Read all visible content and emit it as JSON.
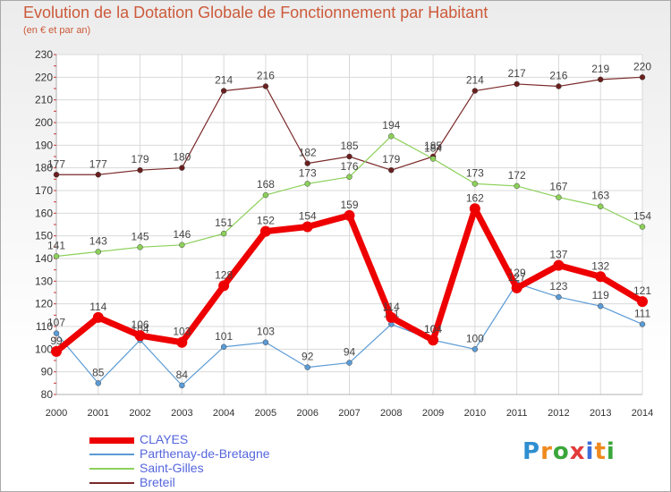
{
  "chart_data": {
    "type": "line",
    "title": "Evolution de la Dotation Globale de Fonctionnement par Habitant",
    "subtitle": "(en € et par an)",
    "x": [
      "2000",
      "2001",
      "2002",
      "2003",
      "2004",
      "2005",
      "2006",
      "2007",
      "2008",
      "2009",
      "2010",
      "2011",
      "2012",
      "2013",
      "2014"
    ],
    "ylim": [
      80,
      230
    ],
    "yticks": [
      80,
      90,
      100,
      110,
      120,
      130,
      140,
      150,
      160,
      170,
      180,
      190,
      200,
      210,
      220,
      230
    ],
    "grid": true,
    "legend_position": "bottom-left",
    "series": [
      {
        "name": "CLAYES",
        "color": "#ee0000",
        "values": [
          99,
          114,
          106,
          103,
          128,
          152,
          154,
          159,
          114,
          104,
          162,
          127,
          137,
          132,
          121
        ],
        "labels": [
          "99",
          "114",
          "106",
          "103",
          "128",
          "152",
          "154",
          "159",
          "114",
          "104",
          "162",
          "127",
          "137",
          "132",
          "121"
        ]
      },
      {
        "name": "Parthenay-de-Bretagne",
        "color": "#5b9bd5",
        "values": [
          107,
          85,
          104,
          84,
          101,
          103,
          92,
          94,
          111,
          104,
          100,
          129,
          123,
          119,
          111
        ],
        "labels": [
          "107",
          "85",
          "104",
          "84",
          "101",
          "103",
          "92",
          "94",
          "111",
          "104",
          "100",
          "129",
          "123",
          "119",
          "111"
        ]
      },
      {
        "name": "Saint-Gilles",
        "color": "#8cd05a",
        "values": [
          141,
          143,
          145,
          146,
          151,
          168,
          173,
          176,
          194,
          184,
          173,
          172,
          167,
          163,
          154
        ],
        "labels": [
          "141",
          "143",
          "145",
          "146",
          "151",
          "168",
          "173",
          "176",
          "194",
          "184",
          "173",
          "172",
          "167",
          "163",
          "154"
        ]
      },
      {
        "name": "Breteil",
        "color": "#7b2a2a",
        "values": [
          177,
          177,
          179,
          180,
          214,
          216,
          182,
          185,
          179,
          185,
          214,
          217,
          216,
          219,
          220
        ],
        "labels": [
          "177",
          "177",
          "179",
          "180",
          "214",
          "216",
          "182",
          "185",
          "179",
          "185",
          "214",
          "217",
          "216",
          "219",
          "220"
        ]
      }
    ]
  },
  "logo": {
    "text": "Proxiti"
  }
}
